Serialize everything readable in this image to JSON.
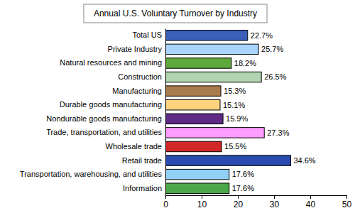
{
  "chart_data": {
    "type": "bar",
    "title": "Annual U.S. Voluntary Turnover by Industry",
    "orientation": "horizontal",
    "categories": [
      "Total US",
      "Private Industry",
      "Natural resources and mining",
      "Construction",
      "Manufacturing",
      "Durable goods manufacturing",
      "Nondurable goods manufacturing",
      "Trade, transportation, and utilities",
      "Wholesale trade",
      "Retail trade",
      "Transportation, warehousing, and utilities",
      "Information"
    ],
    "values": [
      22.7,
      25.7,
      18.2,
      26.5,
      15.3,
      15.1,
      15.9,
      27.3,
      15.5,
      34.6,
      17.6,
      17.6
    ],
    "value_labels": [
      "22.7%",
      "25.7%",
      "18.2%",
      "26.5%",
      "15.3%",
      "15.1%",
      "15.9%",
      "27.3%",
      "15.5%",
      "34.6%",
      "17.6%",
      "17.6%"
    ],
    "colors": [
      "#3a5fb8",
      "#a8d4ff",
      "#5fa83c",
      "#b0d4b0",
      "#a87a4c",
      "#ffd27f",
      "#5e2a86",
      "#ff9cff",
      "#d02828",
      "#2a4cb0",
      "#90d0f4",
      "#4aa84a"
    ],
    "data_labels": true,
    "grid": false,
    "xlim": [
      0,
      50
    ],
    "xticks": [
      0,
      10,
      20,
      30,
      40,
      50
    ]
  }
}
